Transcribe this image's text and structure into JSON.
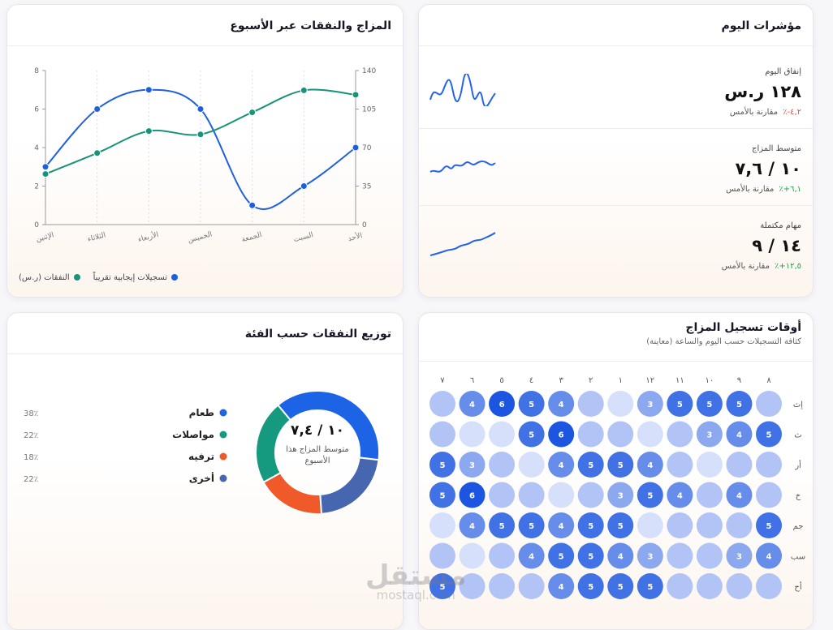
{
  "kpi_card": {
    "title": "مؤشرات اليوم",
    "rows": [
      {
        "label": "إنفاق اليوم",
        "value": "١٢٨ ر.س",
        "delta": "٤,٢-٪",
        "compare": "مقارنة بالأمس"
      },
      {
        "label": "متوسط المزاج",
        "value": "١٠ / ٧,٦",
        "delta": "٦,١+٪",
        "compare": "مقارنة بالأمس"
      },
      {
        "label": "مهام مكتملة",
        "value": "١٤ / ٩",
        "delta": "١٢,٥+٪",
        "compare": "مقارنة بالأمس"
      }
    ]
  },
  "chart_data": [
    {
      "type": "line",
      "title": "المزاج والنفقات عبر الأسبوع",
      "categories": [
        "الإثنين",
        "الثلاثاء",
        "الأربعاء",
        "الخميس",
        "الجمعة",
        "السبت",
        "الأحد"
      ],
      "series": [
        {
          "name": "تسجيلات إيجابية تقريباً",
          "color": "#1d5fe0",
          "values": [
            3,
            6,
            7,
            6,
            1,
            2,
            4
          ]
        },
        {
          "name": "النفقات (ر.س)",
          "color": "#17937a",
          "axis": "y2",
          "values": [
            46,
            65,
            85,
            82,
            102,
            122,
            118
          ]
        }
      ],
      "ylim": [
        0,
        8
      ],
      "yticks": [
        0,
        2,
        4,
        6,
        8
      ],
      "y2lim": [
        0,
        140
      ],
      "y2ticks": [
        0,
        35,
        70,
        105,
        140
      ]
    },
    {
      "type": "donut",
      "title": "توزيع النفقات حسب الفئة",
      "center_value": "١٠ / ٧,٤",
      "center_label": "متوسط المزاج هذا الأسبوع",
      "categories": [
        "طعام",
        "مواصلات",
        "ترفيه",
        "أخرى"
      ],
      "values": [
        38,
        22,
        18,
        22
      ],
      "value_labels": [
        "38٪",
        "22٪",
        "18٪",
        "22٪"
      ],
      "colors": [
        "#1d63e6",
        "#159a80",
        "#f0592a",
        "#4666b0"
      ]
    },
    {
      "type": "heatmap",
      "title": "أوقات تسجيل المزاج",
      "subtitle": "كثافة التسجيلات حسب اليوم والساعة (معاينة)",
      "x": [
        "٨",
        "٩",
        "١٠",
        "١١",
        "١٢",
        "١",
        "٢",
        "٣",
        "٤",
        "٥",
        "٦",
        "٧"
      ],
      "y": [
        "إث",
        "ث",
        "أر",
        "خ",
        "جم",
        "سب",
        "أح"
      ],
      "values": [
        [
          2,
          5,
          5,
          5,
          3,
          1,
          2,
          4,
          5,
          6,
          4,
          2
        ],
        [
          5,
          4,
          3,
          2,
          1,
          2,
          2,
          6,
          5,
          1,
          1,
          2
        ],
        [
          2,
          2,
          1,
          2,
          4,
          5,
          5,
          4,
          1,
          2,
          3,
          5
        ],
        [
          2,
          4,
          2,
          4,
          5,
          3,
          2,
          1,
          2,
          2,
          6,
          5
        ],
        [
          5,
          2,
          2,
          2,
          1,
          5,
          5,
          4,
          5,
          5,
          4,
          1
        ],
        [
          4,
          3,
          2,
          2,
          3,
          4,
          5,
          5,
          4,
          2,
          1,
          2
        ],
        [
          2,
          2,
          2,
          2,
          5,
          5,
          5,
          4,
          2,
          2,
          2,
          5
        ]
      ],
      "value_labels": [
        [
          null,
          "5",
          "5",
          "5",
          "3",
          null,
          null,
          "4",
          "5",
          "6",
          "4",
          null
        ],
        [
          "5",
          "4",
          "3",
          null,
          null,
          null,
          null,
          "6",
          "5",
          null,
          null,
          null
        ],
        [
          null,
          null,
          null,
          null,
          "4",
          "5",
          "5",
          "4",
          null,
          null,
          "3",
          "5"
        ],
        [
          null,
          "4",
          null,
          "4",
          "5",
          "3",
          null,
          null,
          null,
          null,
          "6",
          "5"
        ],
        [
          "5",
          null,
          null,
          null,
          null,
          "5",
          "5",
          "4",
          "5",
          "5",
          "4",
          null
        ],
        [
          "4",
          "3",
          null,
          null,
          "3",
          "4",
          "5",
          "5",
          "4",
          null,
          null,
          null
        ],
        [
          null,
          null,
          null,
          null,
          "5",
          "5",
          "5",
          "4",
          null,
          null,
          null,
          "5"
        ]
      ]
    }
  ],
  "watermark": {
    "brand": "مستقل",
    "url": "mostaql.com"
  }
}
